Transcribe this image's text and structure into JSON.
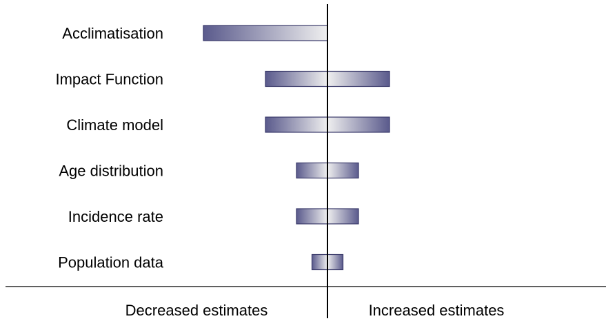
{
  "chart_data": {
    "type": "bar",
    "subtype": "tornado",
    "categories": [
      "Acclimatisation",
      "Impact Function",
      "Climate model",
      "Age distribution",
      "Incidence rate",
      "Population data"
    ],
    "series": [
      {
        "ranges": [
          [
            -4,
            0
          ],
          [
            -2,
            2
          ],
          [
            -2,
            2
          ],
          [
            -1,
            1
          ],
          [
            -1,
            1
          ],
          [
            -0.5,
            0.5
          ]
        ]
      }
    ],
    "direction_labels": {
      "left": "Decreased estimates",
      "right": "Increased estimates"
    },
    "axes_visible": false,
    "grid": false,
    "legend": "none",
    "colors": {
      "bar_dark": "#5a5a8c",
      "bar_light": "#efefef",
      "center_line": "#000000"
    }
  }
}
